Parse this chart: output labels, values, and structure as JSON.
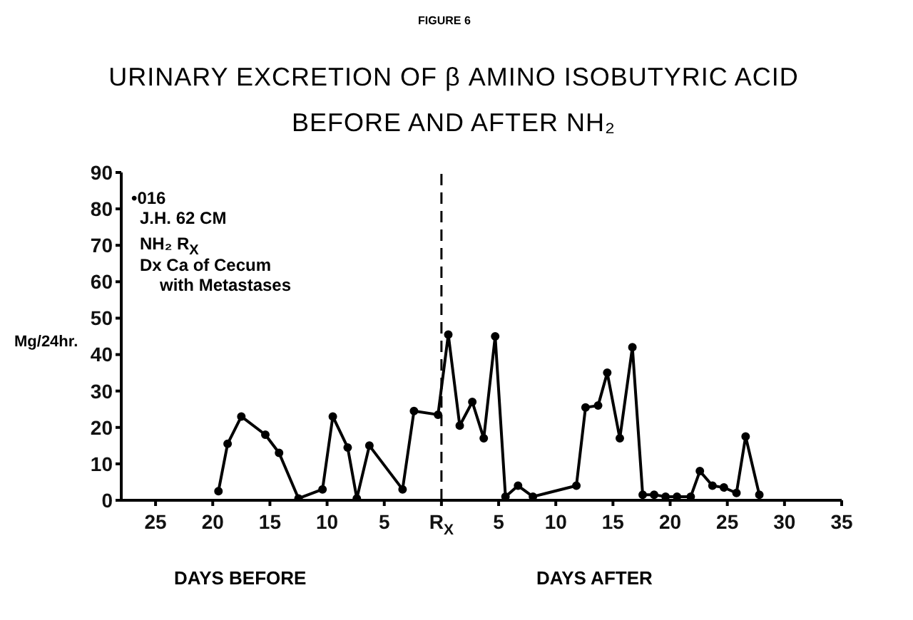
{
  "chart_data": {
    "type": "line",
    "title": "URINARY EXCRETION OF β AMINO ISOBUTYRIC ACID",
    "subtitle": "BEFORE AND AFTER NH₂",
    "ylabel": "Mg/24hr.",
    "annotations": [
      "FIGURE 6",
      "•016",
      "J.H. 62 CM",
      "NH₂ R$_{X}$",
      "Dx Ca of Cecum",
      "with Metastases",
      "DAYS BEFORE",
      "DAYS AFTER"
    ],
    "series": [
      {
        "color": "#000000",
        "x": [
          -19.5,
          -18.7,
          -17.5,
          -15.4,
          -14.2,
          -12.5,
          -10.4,
          -9.5,
          -8.2,
          -7.4,
          -6.3,
          -3.4,
          -2.4,
          -0.3,
          0.6,
          1.6,
          2.7,
          3.7,
          4.7,
          5.6,
          6.7,
          8,
          11.8,
          12.6,
          13.7,
          14.5,
          15.6,
          16.7,
          17.6,
          18.6,
          19.6,
          20.6,
          21.8,
          22.6,
          23.7,
          24.7,
          25.8,
          26.6,
          27.8
        ],
        "values": [
          2.5,
          15.5,
          23,
          18,
          13,
          0.5,
          3,
          23,
          14.5,
          0.5,
          15,
          3,
          24.5,
          23.5,
          45.5,
          20.5,
          27,
          17,
          45,
          1,
          4,
          1,
          4,
          25.5,
          26,
          35,
          17,
          42,
          1.5,
          1.5,
          1,
          1,
          1,
          8,
          4,
          3.5,
          2,
          17.5,
          1.5
        ]
      }
    ],
    "xlim": [
      -28,
      35
    ],
    "xticks": [
      {
        "value": -25,
        "label": "25"
      },
      {
        "value": -20,
        "label": "20"
      },
      {
        "value": -15,
        "label": "15"
      },
      {
        "value": -10,
        "label": "10"
      },
      {
        "value": -5,
        "label": "5"
      },
      {
        "value": 0,
        "label": "R$_{X}$"
      },
      5,
      10,
      15,
      20,
      25,
      30,
      35
    ],
    "ylim": [
      0,
      90
    ],
    "yticks": [
      0,
      10,
      20,
      30,
      40,
      50,
      60,
      70,
      80,
      90
    ],
    "ref_lines": [
      {
        "axis": "x",
        "value": 0,
        "line_style": "dashed",
        "color": "#000000"
      }
    ],
    "grid": false,
    "legend": false,
    "marker": "circle",
    "line_style": "solid"
  }
}
